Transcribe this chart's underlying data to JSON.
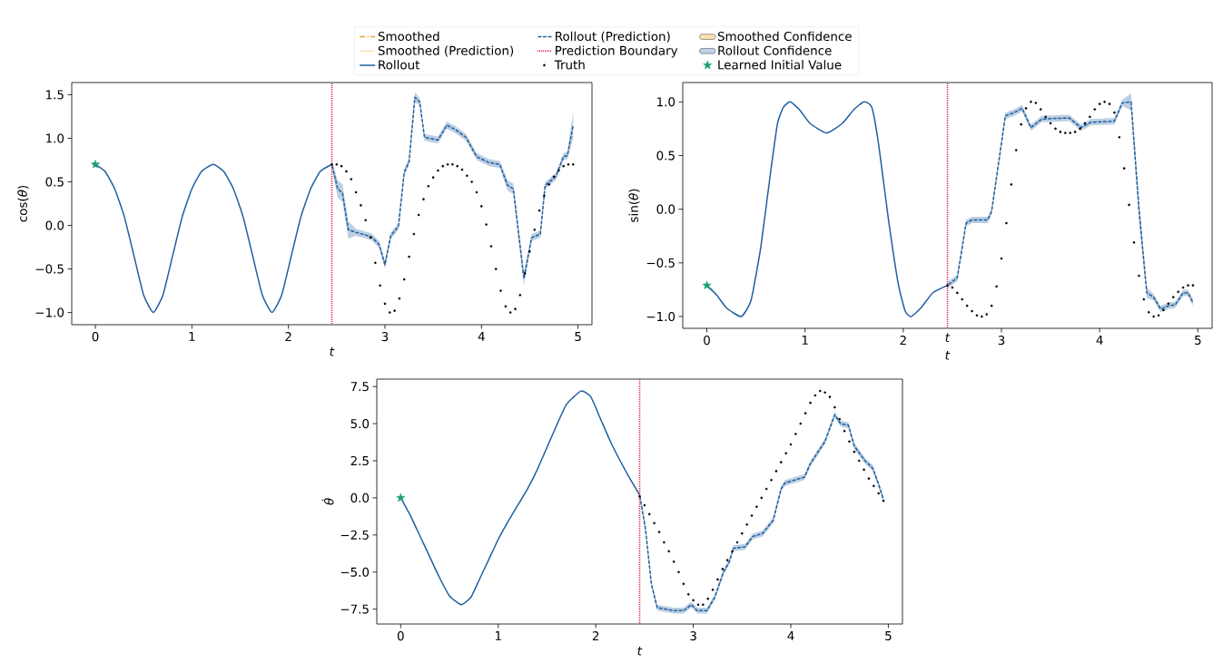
{
  "chart_data": [
    {
      "type": "line",
      "xlabel": "*t*",
      "ylabel": "cos(*θ*)",
      "xlim": [
        -0.245,
        5.145
      ],
      "ylim": [
        -1.14,
        1.64
      ],
      "xticks": [
        0,
        1,
        2,
        3,
        4,
        5
      ],
      "yticks": [
        {
          "value": -1.0,
          "label": "−1.0"
        },
        {
          "value": -0.5,
          "label": "−0.5"
        },
        {
          "value": 0.0,
          "label": "0.0"
        },
        {
          "value": 0.5,
          "label": "0.5"
        },
        {
          "value": 1.0,
          "label": "1.0"
        },
        {
          "value": 1.5,
          "label": "1.5"
        }
      ],
      "legend": "top",
      "ref_lines": [
        {
          "axis": "x",
          "value": 2.45,
          "label": "Prediction Boundary",
          "color": "#e3173d",
          "line_style": "dotted"
        }
      ],
      "series": [
        {
          "name": "Smoothed",
          "color": "#f0a030",
          "line_style": "dashdot",
          "values": [
            null
          ]
        },
        {
          "name": "Smoothed (Prediction)",
          "color": "#f0a030",
          "line_style": "dotted",
          "values": [
            null
          ]
        },
        {
          "name": "Rollout",
          "color": "#1f5fa0",
          "line_style": "solid",
          "x": [
            0,
            0.1,
            0.2,
            0.3,
            0.4,
            0.5,
            0.6,
            0.7,
            0.8,
            0.9,
            1.0,
            1.1,
            1.22,
            1.33,
            1.43,
            1.53,
            1.63,
            1.73,
            1.83,
            1.93,
            2.03,
            2.13,
            2.23,
            2.33,
            2.45
          ],
          "values": [
            0.7,
            0.62,
            0.42,
            0.1,
            -0.35,
            -0.8,
            -1.0,
            -0.8,
            -0.35,
            0.1,
            0.42,
            0.62,
            0.7,
            0.62,
            0.42,
            0.1,
            -0.35,
            -0.8,
            -1.0,
            -0.8,
            -0.35,
            0.1,
            0.42,
            0.62,
            0.7
          ]
        },
        {
          "name": "Rollout (Prediction)",
          "color": "#1f5fa0",
          "line_style": "dashed",
          "x": [
            2.45,
            2.51,
            2.56,
            2.62,
            2.7,
            2.86,
            2.94,
            3.0,
            3.06,
            3.14,
            3.2,
            3.25,
            3.31,
            3.36,
            3.41,
            3.55,
            3.64,
            3.73,
            3.84,
            3.95,
            4.08,
            4.19,
            4.27,
            4.33,
            4.44,
            4.52,
            4.61,
            4.66,
            4.77,
            4.85,
            4.89,
            4.95
          ],
          "values": [
            0.7,
            0.42,
            0.37,
            -0.05,
            -0.08,
            -0.13,
            -0.22,
            -0.45,
            -0.12,
            -0.01,
            0.61,
            0.73,
            1.47,
            1.42,
            1.01,
            0.98,
            1.15,
            1.1,
            1.01,
            0.79,
            0.72,
            0.7,
            0.46,
            0.42,
            -0.61,
            -0.14,
            -0.1,
            0.46,
            0.56,
            0.79,
            0.8,
            1.15
          ],
          "lower": [
            0.66,
            0.32,
            0.27,
            -0.15,
            -0.12,
            -0.17,
            -0.26,
            -0.5,
            -0.16,
            -0.05,
            0.57,
            0.69,
            1.41,
            1.38,
            0.97,
            0.94,
            1.11,
            1.06,
            0.97,
            0.75,
            0.68,
            0.66,
            0.4,
            0.36,
            -0.69,
            -0.18,
            -0.14,
            0.42,
            0.52,
            0.75,
            0.76,
            1.0
          ],
          "upper": [
            0.74,
            0.52,
            0.47,
            0.05,
            -0.04,
            -0.09,
            -0.18,
            -0.4,
            -0.08,
            0.03,
            0.65,
            0.77,
            1.53,
            1.46,
            1.05,
            1.02,
            1.19,
            1.14,
            1.05,
            0.83,
            0.76,
            0.74,
            0.52,
            0.48,
            -0.53,
            -0.1,
            -0.06,
            0.5,
            0.6,
            0.83,
            0.84,
            1.3
          ]
        },
        {
          "name": "Truth",
          "type": "scatter",
          "color": "#000000",
          "marker": "circle",
          "x": [
            2.45,
            2.5,
            2.55,
            2.6,
            2.65,
            2.7,
            2.75,
            2.8,
            2.85,
            2.9,
            2.95,
            3.0,
            3.05,
            3.1,
            3.15,
            3.2,
            3.25,
            3.3,
            3.35,
            3.4,
            3.45,
            3.5,
            3.55,
            3.6,
            3.65,
            3.7,
            3.75,
            3.8,
            3.85,
            3.9,
            3.95,
            4.0,
            4.05,
            4.1,
            4.15,
            4.2,
            4.25,
            4.3,
            4.35,
            4.4,
            4.45,
            4.5,
            4.55,
            4.6,
            4.65,
            4.7,
            4.75,
            4.8,
            4.85,
            4.9,
            4.95
          ],
          "values": [
            0.7,
            0.7,
            0.68,
            0.62,
            0.53,
            0.38,
            0.23,
            0.06,
            -0.14,
            -0.43,
            -0.69,
            -0.9,
            -1.0,
            -0.98,
            -0.84,
            -0.62,
            -0.36,
            -0.1,
            0.12,
            0.3,
            0.45,
            0.55,
            0.63,
            0.68,
            0.7,
            0.7,
            0.68,
            0.64,
            0.57,
            0.5,
            0.38,
            0.22,
            0.01,
            -0.24,
            -0.5,
            -0.75,
            -0.93,
            -1.0,
            -0.96,
            -0.8,
            -0.55,
            -0.3,
            -0.05,
            0.17,
            0.34,
            0.47,
            0.56,
            0.63,
            0.68,
            0.7,
            0.7
          ]
        },
        {
          "name": "Smoothed Confidence",
          "type": "area",
          "color": "#fde3b8",
          "values": [
            null
          ]
        },
        {
          "name": "Rollout Confidence",
          "type": "area",
          "color": "#bdd3ea",
          "values": [
            null
          ]
        },
        {
          "name": "Learned Initial Value",
          "type": "scatter",
          "color": "#1b9e77",
          "marker": "star",
          "x": [
            0
          ],
          "values": [
            0.7
          ]
        }
      ]
    },
    {
      "type": "line",
      "xlabel": "*t*",
      "ylabel": "sin(*θ*)",
      "xlim": [
        -0.245,
        5.145
      ],
      "ylim": [
        -1.11,
        1.18
      ],
      "xticks": [
        0,
        1,
        2,
        3,
        4,
        5
      ],
      "yticks": [
        {
          "value": -1.0,
          "label": "−1.0"
        },
        {
          "value": -0.5,
          "label": "−0.5"
        },
        {
          "value": 0.0,
          "label": "0.0"
        },
        {
          "value": 0.5,
          "label": "0.5"
        },
        {
          "value": 1.0,
          "label": "1.0"
        }
      ],
      "annotations": [
        "*t*"
      ],
      "ref_lines": [
        {
          "axis": "x",
          "value": 2.45,
          "color": "#e3173d",
          "line_style": "dotted"
        }
      ],
      "series": [
        {
          "color": "#1f5fa0",
          "line_style": "solid",
          "x": [
            0,
            0.1,
            0.2,
            0.35,
            0.45,
            0.55,
            0.65,
            0.72,
            0.78,
            0.85,
            0.95,
            1.05,
            1.22,
            1.38,
            1.5,
            1.6,
            1.68,
            1.75,
            1.85,
            1.95,
            2.02,
            2.08,
            2.18,
            2.3,
            2.45
          ],
          "values": [
            -0.71,
            -0.8,
            -0.92,
            -1.0,
            -0.85,
            -0.35,
            0.35,
            0.8,
            0.95,
            1.0,
            0.92,
            0.8,
            0.71,
            0.8,
            0.93,
            1.0,
            0.95,
            0.6,
            -0.1,
            -0.7,
            -0.95,
            -1.0,
            -0.92,
            -0.78,
            -0.71
          ]
        },
        {
          "color": "#1f5fa0",
          "line_style": "dashed",
          "x": [
            2.45,
            2.55,
            2.64,
            2.7,
            2.86,
            2.9,
            3.04,
            3.13,
            3.21,
            3.3,
            3.41,
            3.69,
            3.81,
            3.91,
            4.15,
            4.23,
            4.32,
            4.4,
            4.48,
            4.55,
            4.62,
            4.7,
            4.77,
            4.85,
            4.9,
            4.95
          ],
          "values": [
            -0.71,
            -0.64,
            -0.13,
            -0.1,
            -0.1,
            -0.02,
            0.87,
            0.9,
            0.94,
            0.76,
            0.84,
            0.85,
            0.76,
            0.81,
            0.82,
            0.99,
            1.0,
            0.0,
            -0.78,
            -0.82,
            -0.93,
            -0.9,
            -0.89,
            -0.78,
            -0.78,
            -0.87
          ],
          "lower": [
            -0.74,
            -0.67,
            -0.16,
            -0.13,
            -0.13,
            -0.05,
            0.84,
            0.87,
            0.91,
            0.73,
            0.81,
            0.82,
            0.73,
            0.78,
            0.79,
            0.96,
            0.92,
            -0.1,
            -0.83,
            -0.85,
            -0.96,
            -0.93,
            -0.92,
            -0.81,
            -0.81,
            -0.9
          ],
          "upper": [
            -0.68,
            -0.61,
            -0.1,
            -0.07,
            -0.07,
            0.01,
            0.9,
            0.93,
            0.97,
            0.79,
            0.87,
            0.88,
            0.79,
            0.84,
            0.85,
            1.02,
            1.08,
            0.1,
            -0.73,
            -0.79,
            -0.9,
            -0.87,
            -0.86,
            -0.75,
            -0.75,
            -0.84
          ]
        },
        {
          "type": "scatter",
          "color": "#000000",
          "marker": "circle",
          "x": [
            2.45,
            2.5,
            2.55,
            2.6,
            2.65,
            2.7,
            2.75,
            2.8,
            2.85,
            2.9,
            2.95,
            3.0,
            3.05,
            3.1,
            3.15,
            3.2,
            3.25,
            3.3,
            3.35,
            3.4,
            3.45,
            3.5,
            3.55,
            3.6,
            3.65,
            3.7,
            3.75,
            3.8,
            3.85,
            3.9,
            3.95,
            4.0,
            4.05,
            4.1,
            4.15,
            4.2,
            4.25,
            4.3,
            4.35,
            4.4,
            4.45,
            4.5,
            4.55,
            4.6,
            4.65,
            4.7,
            4.75,
            4.8,
            4.85,
            4.9,
            4.95
          ],
          "values": [
            -0.71,
            -0.73,
            -0.78,
            -0.84,
            -0.9,
            -0.95,
            -0.99,
            -1.0,
            -0.98,
            -0.9,
            -0.72,
            -0.46,
            -0.13,
            0.23,
            0.55,
            0.79,
            0.94,
            1.0,
            0.99,
            0.93,
            0.86,
            0.8,
            0.75,
            0.72,
            0.71,
            0.71,
            0.72,
            0.75,
            0.8,
            0.86,
            0.93,
            0.98,
            1.0,
            0.98,
            0.9,
            0.67,
            0.38,
            0.04,
            -0.31,
            -0.62,
            -0.84,
            -0.96,
            -1.0,
            -0.99,
            -0.94,
            -0.88,
            -0.82,
            -0.77,
            -0.73,
            -0.71,
            -0.71
          ]
        },
        {
          "type": "scatter",
          "color": "#1b9e77",
          "marker": "star",
          "x": [
            0
          ],
          "values": [
            -0.71
          ]
        }
      ]
    },
    {
      "type": "line",
      "xlabel": "*t*",
      "ylabel": "*θ̇*",
      "xlim": [
        -0.245,
        5.145
      ],
      "ylim": [
        -8.5,
        8.0
      ],
      "xticks": [
        0,
        1,
        2,
        3,
        4,
        5
      ],
      "yticks": [
        {
          "value": -7.5,
          "label": "−7.5"
        },
        {
          "value": -5.0,
          "label": "−5.0"
        },
        {
          "value": -2.5,
          "label": "−2.5"
        },
        {
          "value": 0.0,
          "label": "0.0"
        },
        {
          "value": 2.5,
          "label": "2.5"
        },
        {
          "value": 5.0,
          "label": "5.0"
        },
        {
          "value": 7.5,
          "label": "7.5"
        }
      ],
      "ref_lines": [
        {
          "axis": "x",
          "value": 2.45,
          "color": "#e3173d",
          "line_style": "dotted"
        }
      ],
      "series": [
        {
          "color": "#1f5fa0",
          "line_style": "solid",
          "x": [
            0,
            0.1,
            0.2,
            0.3,
            0.4,
            0.5,
            0.62,
            0.72,
            0.8,
            0.9,
            1.0,
            1.1,
            1.2,
            1.3,
            1.4,
            1.5,
            1.6,
            1.7,
            1.85,
            1.95,
            2.05,
            2.15,
            2.25,
            2.35,
            2.45
          ],
          "values": [
            0.0,
            -1.2,
            -2.6,
            -4.0,
            -5.4,
            -6.6,
            -7.2,
            -6.7,
            -5.6,
            -4.2,
            -2.8,
            -1.6,
            -0.5,
            0.6,
            1.9,
            3.4,
            4.9,
            6.3,
            7.2,
            6.8,
            5.3,
            3.8,
            2.5,
            1.3,
            0.2
          ]
        },
        {
          "color": "#1f5fa0",
          "line_style": "dashed",
          "x": [
            2.45,
            2.51,
            2.57,
            2.63,
            2.8,
            2.9,
            2.98,
            3.04,
            3.14,
            3.22,
            3.31,
            3.37,
            3.41,
            3.53,
            3.61,
            3.71,
            3.82,
            3.9,
            3.94,
            4.14,
            4.2,
            4.27,
            4.35,
            4.45,
            4.51,
            4.59,
            4.65,
            4.76,
            4.84,
            4.9,
            4.95
          ],
          "values": [
            0.2,
            -2.1,
            -5.8,
            -7.4,
            -7.6,
            -7.6,
            -7.2,
            -7.6,
            -7.6,
            -6.7,
            -5.0,
            -4.3,
            -3.4,
            -3.3,
            -2.6,
            -2.4,
            -1.5,
            0.6,
            1.0,
            1.4,
            2.3,
            3.0,
            3.8,
            5.6,
            5.0,
            4.9,
            3.5,
            2.5,
            2.0,
            0.9,
            -0.1
          ],
          "lower": [
            0.0,
            -2.3,
            -6.0,
            -7.6,
            -7.8,
            -7.8,
            -7.4,
            -7.8,
            -7.8,
            -6.9,
            -5.2,
            -4.5,
            -3.6,
            -3.5,
            -2.8,
            -2.6,
            -1.7,
            0.4,
            0.8,
            1.2,
            2.1,
            2.8,
            3.6,
            5.4,
            4.8,
            4.7,
            3.3,
            2.3,
            1.8,
            0.7,
            -0.3
          ],
          "upper": [
            0.4,
            -1.9,
            -5.6,
            -7.2,
            -7.4,
            -7.4,
            -7.0,
            -7.4,
            -7.4,
            -6.5,
            -4.8,
            -4.1,
            -3.2,
            -3.1,
            -2.4,
            -2.2,
            -1.3,
            0.8,
            1.2,
            1.6,
            2.5,
            3.2,
            4.0,
            5.8,
            5.2,
            5.1,
            3.7,
            2.7,
            2.2,
            1.1,
            0.1
          ]
        },
        {
          "type": "scatter",
          "color": "#000000",
          "marker": "circle",
          "x": [
            2.45,
            2.5,
            2.55,
            2.6,
            2.65,
            2.7,
            2.75,
            2.8,
            2.85,
            2.9,
            2.95,
            3.0,
            3.05,
            3.1,
            3.15,
            3.2,
            3.25,
            3.3,
            3.35,
            3.4,
            3.45,
            3.5,
            3.55,
            3.6,
            3.65,
            3.7,
            3.75,
            3.8,
            3.85,
            3.9,
            3.95,
            4.0,
            4.05,
            4.1,
            4.15,
            4.2,
            4.25,
            4.3,
            4.35,
            4.4,
            4.45,
            4.5,
            4.55,
            4.6,
            4.65,
            4.7,
            4.75,
            4.8,
            4.85,
            4.9,
            4.95
          ],
          "values": [
            0.1,
            -0.5,
            -1.1,
            -1.7,
            -2.3,
            -3.0,
            -3.6,
            -4.3,
            -5.0,
            -5.8,
            -6.5,
            -6.9,
            -7.2,
            -7.2,
            -6.8,
            -6.2,
            -5.5,
            -4.8,
            -4.2,
            -3.6,
            -3.0,
            -2.4,
            -1.8,
            -1.2,
            -0.6,
            0.0,
            0.6,
            1.2,
            1.8,
            2.4,
            3.0,
            3.6,
            4.3,
            5.0,
            5.7,
            6.4,
            6.9,
            7.2,
            7.1,
            6.8,
            6.1,
            5.3,
            4.5,
            3.8,
            3.1,
            2.5,
            1.9,
            1.3,
            0.8,
            0.3,
            -0.2
          ]
        },
        {
          "type": "scatter",
          "color": "#1b9e77",
          "marker": "star",
          "x": [
            0
          ],
          "values": [
            0.0
          ]
        }
      ]
    }
  ]
}
